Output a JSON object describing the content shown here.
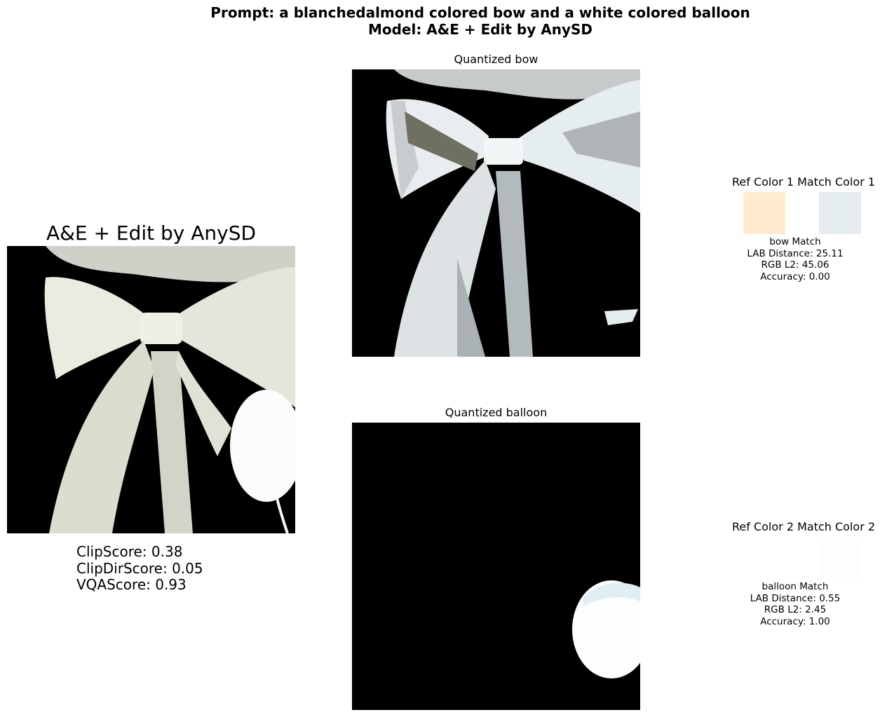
{
  "header": {
    "prompt_line": "Prompt: a blanchedalmond colored bow and a white colored balloon",
    "model_line": "Model: A&E + Edit by AnySD"
  },
  "main_image": {
    "title": "A&E + Edit by AnySD",
    "scores": {
      "clip": "ClipScore: 0.38",
      "clip_dir": "ClipDirScore: 0.05",
      "vqa": "VQAScore: 0.93"
    }
  },
  "quantized": [
    {
      "title": "Quantized bow"
    },
    {
      "title": "Quantized balloon"
    }
  ],
  "matches": [
    {
      "header": "Ref Color 1 Match Color 1",
      "ref_color": "#FFEBCD",
      "match_color": "#E6EDEF",
      "label": "bow Match",
      "lab": "LAB Distance: 25.11",
      "rgb": "RGB L2: 45.06",
      "accuracy": "Accuracy: 0.00"
    },
    {
      "header": "Ref Color 2 Match Color 2",
      "ref_color": "#FFFFFF",
      "match_color": "#FBFEFD",
      "label": "balloon Match",
      "lab": "LAB Distance: 0.55",
      "rgb": "RGB L2: 2.45",
      "accuracy": "Accuracy: 1.00"
    }
  ]
}
